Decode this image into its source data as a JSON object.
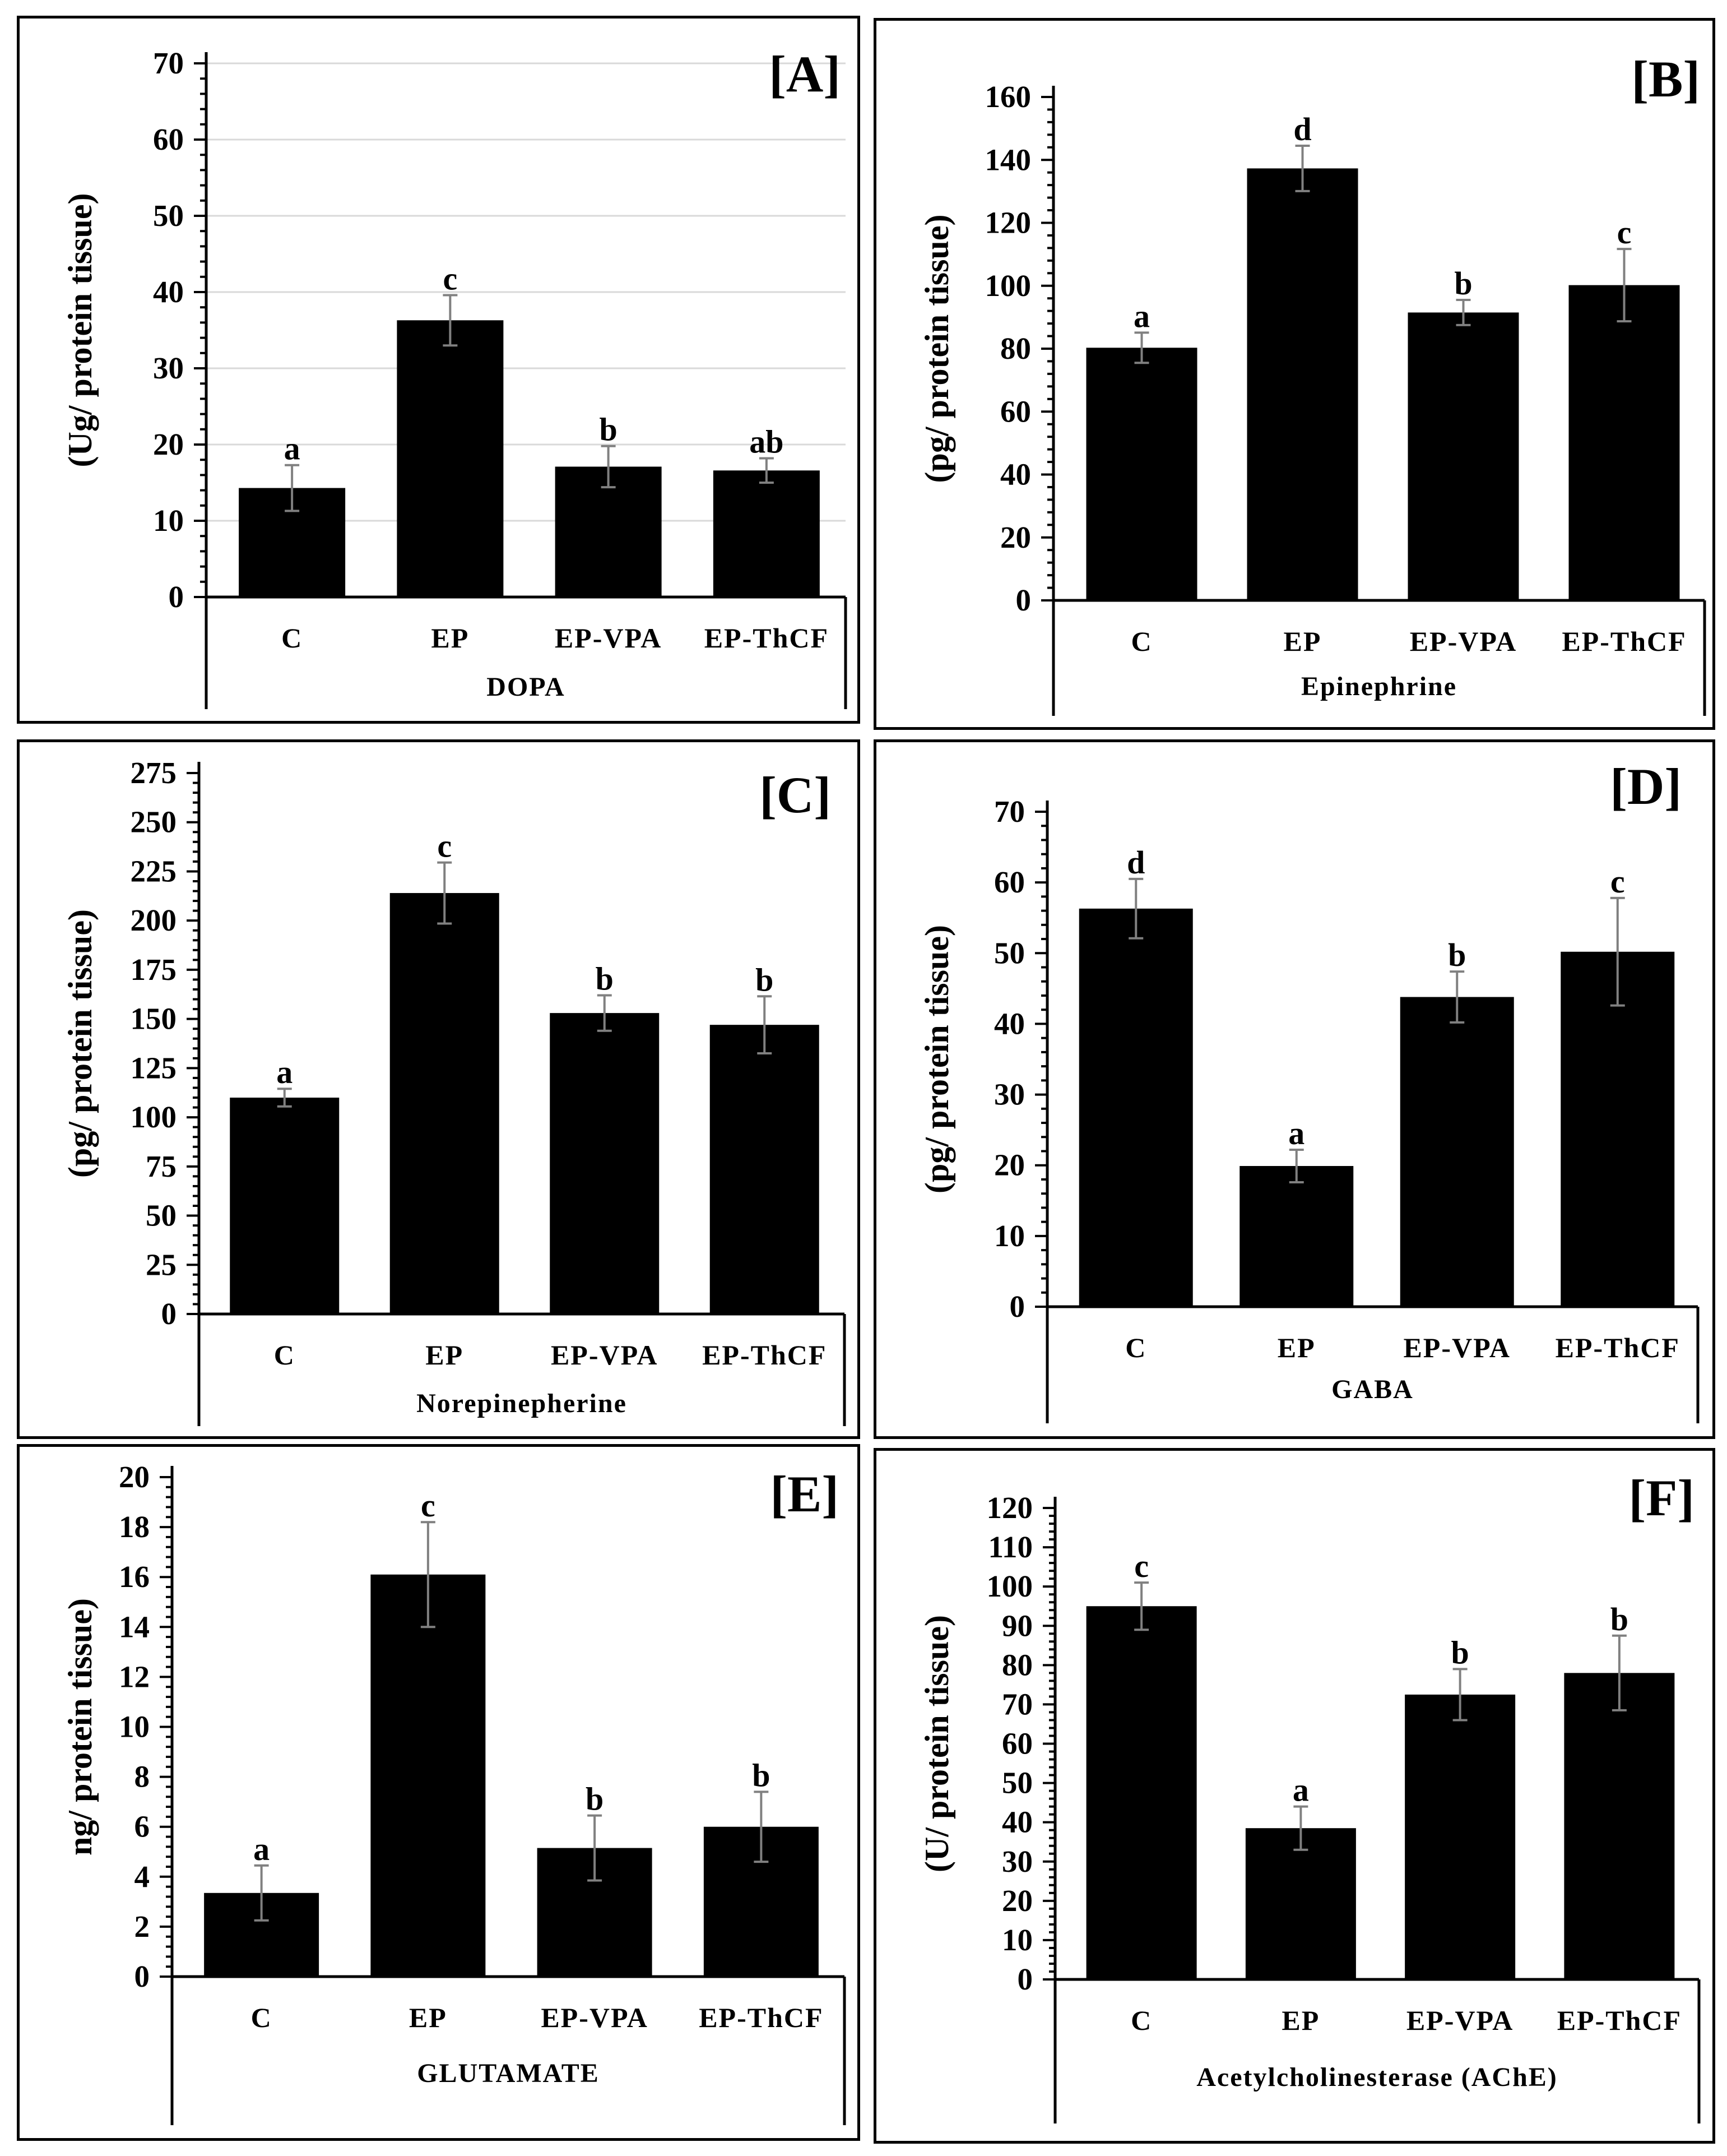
{
  "chart_data": [
    {
      "panel_label": "[A]",
      "type": "bar",
      "title": "",
      "xlabel": "DOPA",
      "ylabel": "(Ug/ protein tissue)",
      "ylim": [
        0,
        70
      ],
      "ytick_step": 10,
      "yticks": [
        "0",
        "10",
        "20",
        "30",
        "40",
        "50",
        "60",
        "70"
      ],
      "categories": [
        "C",
        "EP",
        "EP-VPA",
        "EP-ThCF"
      ],
      "values": [
        14.3,
        36.3,
        17.1,
        16.6
      ],
      "errors": [
        3.0,
        3.3,
        2.7,
        1.6
      ],
      "letters": [
        "a",
        "c",
        "b",
        "ab"
      ],
      "grid": true
    },
    {
      "panel_label": "[B]",
      "type": "bar",
      "title": "",
      "xlabel": "Epinephrine",
      "ylabel": "(pg/ protein tissue)",
      "ylim": [
        0,
        160
      ],
      "ytick_step": 20,
      "yticks": [
        "0",
        "20",
        "40",
        "60",
        "80",
        "100",
        "120",
        "140",
        "160"
      ],
      "categories": [
        "C",
        "EP",
        "EP-VPA",
        "EP-ThCF"
      ],
      "values": [
        80.3,
        137.3,
        91.5,
        100.2
      ],
      "errors": [
        4.8,
        7.2,
        4.0,
        11.5
      ],
      "letters": [
        "a",
        "d",
        "b",
        "c"
      ],
      "grid": false
    },
    {
      "panel_label": "[C]",
      "type": "bar",
      "title": "",
      "xlabel": "Norepinepherine",
      "ylabel": "(pg/ protein tissue)",
      "ylim": [
        0,
        275
      ],
      "ytick_step": 25,
      "yticks": [
        "0",
        "25",
        "50",
        "75",
        "100",
        "125",
        "150",
        "175",
        "200",
        "225",
        "250",
        "275"
      ],
      "categories": [
        "C",
        "EP",
        "EP-VPA",
        "EP-ThCF"
      ],
      "values": [
        110.0,
        214.0,
        153.0,
        147.0
      ],
      "errors": [
        4.5,
        15.5,
        9.0,
        14.5
      ],
      "letters": [
        "a",
        "c",
        "b",
        "b"
      ],
      "grid": false
    },
    {
      "panel_label": "[D]",
      "type": "bar",
      "title": "",
      "xlabel": "GABA",
      "ylabel": "(pg/ protein tissue)",
      "ylim": [
        0,
        70
      ],
      "ytick_step": 10,
      "yticks": [
        "0",
        "10",
        "20",
        "30",
        "40",
        "50",
        "60",
        "70"
      ],
      "categories": [
        "C",
        "EP",
        "EP-VPA",
        "EP-ThCF"
      ],
      "values": [
        56.3,
        19.9,
        43.8,
        50.2
      ],
      "errors": [
        4.2,
        2.3,
        3.6,
        7.6
      ],
      "letters": [
        "d",
        "a",
        "b",
        "c"
      ],
      "grid": false
    },
    {
      "panel_label": "[E]",
      "type": "bar",
      "title": "",
      "xlabel": "GLUTAMATE",
      "ylabel": "ng/ protein tissue)",
      "ylim": [
        0,
        20
      ],
      "ytick_step": 2,
      "yticks": [
        "0",
        "2",
        "4",
        "6",
        "8",
        "10",
        "12",
        "14",
        "16",
        "18",
        "20"
      ],
      "categories": [
        "C",
        "EP",
        "EP-VPA",
        "EP-ThCF"
      ],
      "values": [
        3.35,
        16.1,
        5.15,
        6.0
      ],
      "errors": [
        1.1,
        2.1,
        1.3,
        1.4
      ],
      "letters": [
        "a",
        "c",
        "b",
        "b"
      ],
      "grid": false
    },
    {
      "panel_label": "[F]",
      "type": "bar",
      "title": "",
      "xlabel": "Acetylcholinesterase (AChE)",
      "ylabel": "(U/ protein tissue)",
      "ylim": [
        0,
        120
      ],
      "ytick_step": 10,
      "yticks": [
        "0",
        "10",
        "20",
        "30",
        "40",
        "50",
        "60",
        "70",
        "80",
        "90",
        "100",
        "110",
        "120"
      ],
      "categories": [
        "C",
        "EP",
        "EP-VPA",
        "EP-ThCF"
      ],
      "values": [
        95.0,
        38.5,
        72.5,
        78.0
      ],
      "errors": [
        6.0,
        5.5,
        6.5,
        9.5
      ],
      "letters": [
        "c",
        "a",
        "b",
        "b"
      ],
      "grid": false
    }
  ]
}
